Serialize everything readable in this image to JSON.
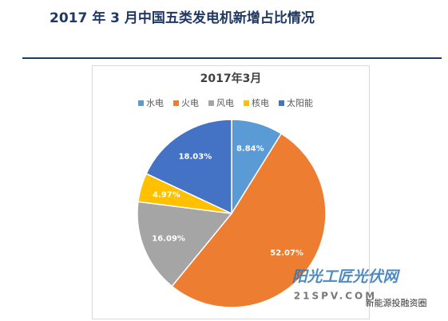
{
  "header": {
    "title": "2017 年 3 月中国五类发电机新增占比情况"
  },
  "chart_data": {
    "type": "pie",
    "title": "2017年3月",
    "categories": [
      "水电",
      "火电",
      "风电",
      "核电",
      "太阳能"
    ],
    "values": [
      8.84,
      52.07,
      16.09,
      4.97,
      18.03
    ],
    "value_labels": [
      "8.84%",
      "52.07%",
      "16.09%",
      "4.97%",
      "18.03%"
    ],
    "colors": [
      "#5b9bd5",
      "#ed7d31",
      "#a5a5a5",
      "#ffc000",
      "#4472c4"
    ],
    "legend": "top"
  },
  "watermark": {
    "site": "阳光工匠光伏网",
    "url": "21SPV.COM",
    "account": "新能源投融资圈"
  }
}
